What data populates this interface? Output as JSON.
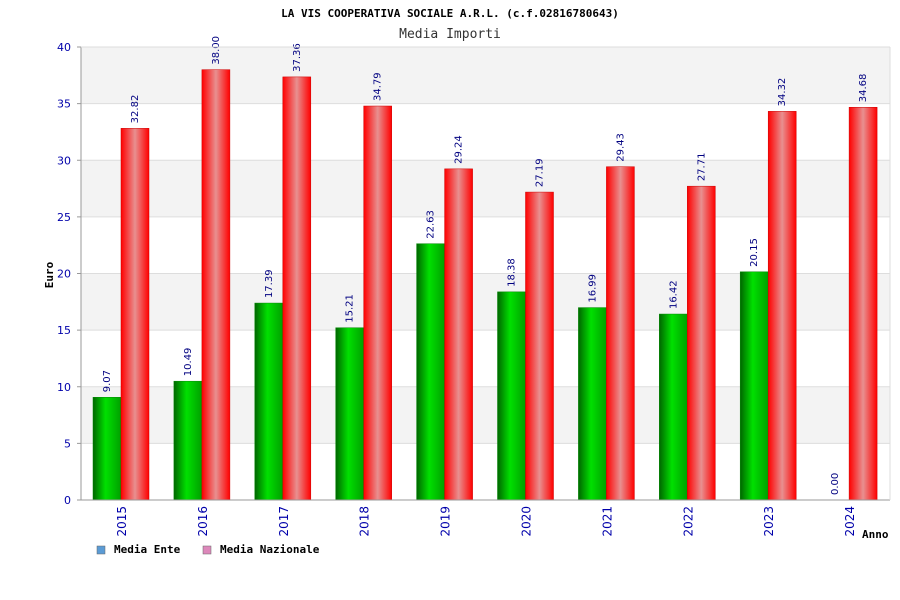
{
  "chart_data": {
    "type": "bar",
    "title": "LA VIS COOPERATIVA SOCIALE A.R.L. (c.f.02816780643)",
    "subtitle": "Media Importi",
    "xlabel": "Anno",
    "ylabel": "Euro",
    "ylim": [
      0,
      40
    ],
    "yticks": [
      "0",
      "5",
      "10",
      "15",
      "20",
      "25",
      "30",
      "35",
      "40"
    ],
    "categories": [
      "2015",
      "2016",
      "2017",
      "2018",
      "2019",
      "2020",
      "2021",
      "2022",
      "2023",
      "2024"
    ],
    "series": [
      {
        "name": "Media Ente",
        "color": "#00cc00",
        "legend_color": "#5b9bd5",
        "values": [
          9.07,
          10.49,
          17.39,
          15.21,
          22.63,
          18.38,
          16.99,
          16.42,
          20.15,
          0.0
        ],
        "labels": [
          "9.07",
          "10.49",
          "17.39",
          "15.21",
          "22.63",
          "18.38",
          "16.99",
          "16.42",
          "20.15",
          "0.00"
        ]
      },
      {
        "name": "Media Nazionale",
        "color": "#ff0000",
        "legend_color": "#dd88bb",
        "values": [
          32.82,
          38.0,
          37.36,
          34.79,
          29.24,
          27.19,
          29.43,
          27.71,
          34.32,
          34.68
        ],
        "labels": [
          "32.82",
          "38.00",
          "37.36",
          "34.79",
          "29.24",
          "27.19",
          "29.43",
          "27.71",
          "34.32",
          "34.68"
        ]
      }
    ],
    "grid": true,
    "legend_position": "bottom-left"
  }
}
